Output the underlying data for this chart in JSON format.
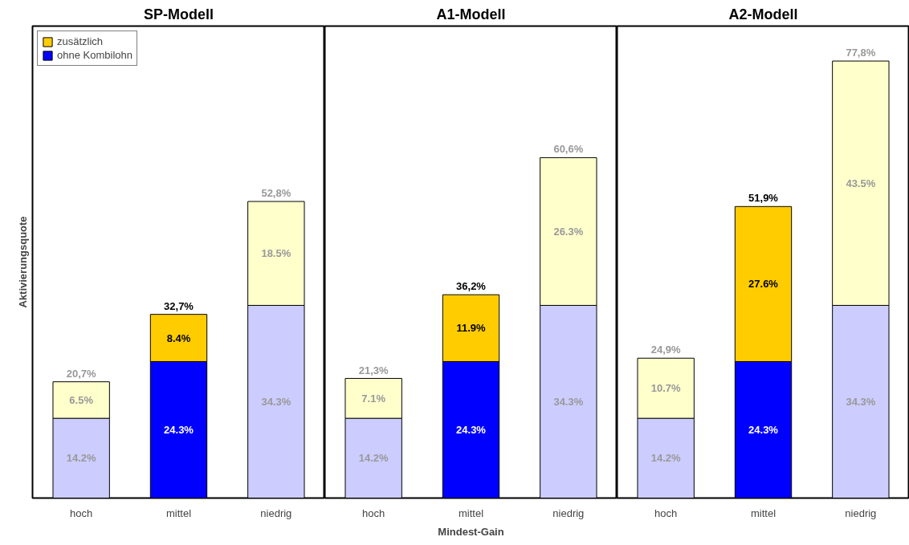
{
  "chart_data": [
    {
      "type": "bar",
      "stacked": true,
      "title": "SP-Modell",
      "ylabel": "Aktivierungsquote",
      "categories": [
        "hoch",
        "mittel",
        "niedrig"
      ],
      "tick_labels": "x",
      "legend": "top left",
      "series": [
        {
          "name": "ohne Kombilohn",
          "color": "#0000ff",
          "colors": [
            "#ccccff",
            "#0000ff",
            "#ccccff"
          ],
          "values": [
            14.2,
            24.3,
            34.3
          ],
          "value_labels": [
            "14.2%",
            "24.3%",
            "34.3%"
          ]
        },
        {
          "name": "zusätzlich",
          "color": "#ffcc00",
          "colors": [
            "#ffffcc",
            "#ffcc00",
            "#ffffcc"
          ],
          "values": [
            6.5,
            8.4,
            18.5
          ],
          "value_labels": [
            "6.5%",
            "8.4%",
            "18.5%"
          ]
        }
      ],
      "totals": [
        "20,7%",
        "32,7%",
        "52,8%"
      ]
    },
    {
      "type": "bar",
      "stacked": true,
      "title": "A1-Modell",
      "xlabel": "Mindest-Gain",
      "categories": [
        "hoch",
        "mittel",
        "niedrig"
      ],
      "tick_labels": "x",
      "series": [
        {
          "colors": [
            "#ccccff",
            "#0000ff",
            "#ccccff"
          ],
          "values": [
            14.2,
            24.3,
            34.3
          ],
          "value_labels": [
            "14.2%",
            "24.3%",
            "34.3%"
          ]
        },
        {
          "colors": [
            "#ffffcc",
            "#ffcc00",
            "#ffffcc"
          ],
          "values": [
            7.1,
            11.9,
            26.3
          ],
          "value_labels": [
            "7.1%",
            "11.9%",
            "26.3%"
          ]
        }
      ],
      "totals": [
        "21,3%",
        "36,2%",
        "60,6%"
      ]
    },
    {
      "type": "bar",
      "stacked": true,
      "title": "A2-Modell",
      "categories": [
        "hoch",
        "mittel",
        "niedrig"
      ],
      "tick_labels": "x",
      "series": [
        {
          "colors": [
            "#ccccff",
            "#0000ff",
            "#ccccff"
          ],
          "values": [
            14.2,
            24.3,
            34.3
          ],
          "value_labels": [
            "14.2%",
            "24.3%",
            "34.3%"
          ]
        },
        {
          "colors": [
            "#ffffcc",
            "#ffcc00",
            "#ffffcc"
          ],
          "values": [
            10.7,
            27.6,
            43.5
          ],
          "value_labels": [
            "10.7%",
            "27.6%",
            "43.5%"
          ]
        }
      ],
      "totals": [
        "24,9%",
        "51,9%",
        "77,8%"
      ]
    }
  ]
}
